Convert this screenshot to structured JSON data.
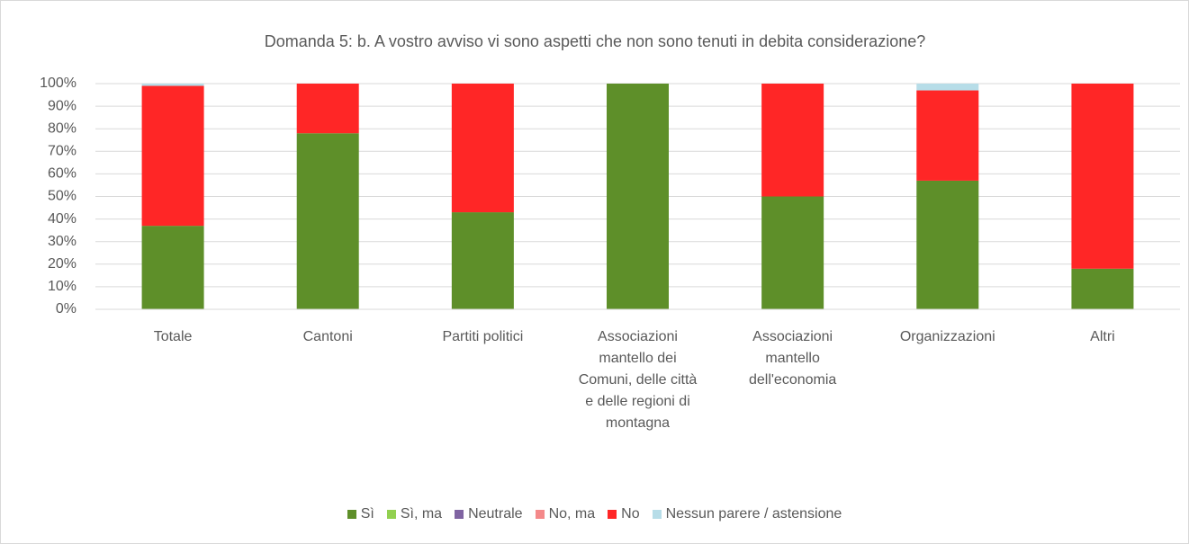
{
  "chart_data": {
    "type": "stacked_bar",
    "title": "Domanda 5: b. A vostro avviso vi sono aspetti che non sono tenuti in debita considerazione?",
    "categories": [
      "Totale",
      "Cantoni",
      "Partiti politici",
      "Associazioni mantello dei Comuni, delle città e delle regioni di montagna",
      "Associazioni mantello dell'economia",
      "Organizzazioni",
      "Altri"
    ],
    "series": [
      {
        "name": "Sì",
        "color": "#5e8f29",
        "values": [
          37,
          78,
          43,
          100,
          50,
          57,
          18
        ]
      },
      {
        "name": "Sì, ma",
        "color": "#92d050",
        "values": [
          0,
          0,
          0,
          0,
          0,
          0,
          0
        ]
      },
      {
        "name": "Neutrale",
        "color": "#8064a2",
        "values": [
          0,
          0,
          0,
          0,
          0,
          0,
          0
        ]
      },
      {
        "name": "No, ma",
        "color": "#f4898a",
        "values": [
          0,
          0,
          0,
          0,
          0,
          0,
          0
        ]
      },
      {
        "name": "No",
        "color": "#ff2626",
        "values": [
          62,
          22,
          57,
          0,
          50,
          40,
          82
        ]
      },
      {
        "name": "Nessun parere / astensione",
        "color": "#b7dde8",
        "values": [
          1,
          0,
          0,
          0,
          0,
          3,
          0
        ]
      }
    ],
    "ylim": [
      0,
      100
    ],
    "yticks": [
      {
        "value": 0,
        "label": "0%"
      },
      {
        "value": 10,
        "label": "10%"
      },
      {
        "value": 20,
        "label": "20%"
      },
      {
        "value": 30,
        "label": "30%"
      },
      {
        "value": 40,
        "label": "40%"
      },
      {
        "value": 50,
        "label": "50%"
      },
      {
        "value": 60,
        "label": "60%"
      },
      {
        "value": 70,
        "label": "70%"
      },
      {
        "value": 80,
        "label": "80%"
      },
      {
        "value": 90,
        "label": "90%"
      },
      {
        "value": 100,
        "label": "100%"
      }
    ],
    "grid": true,
    "legend": "bottom"
  }
}
